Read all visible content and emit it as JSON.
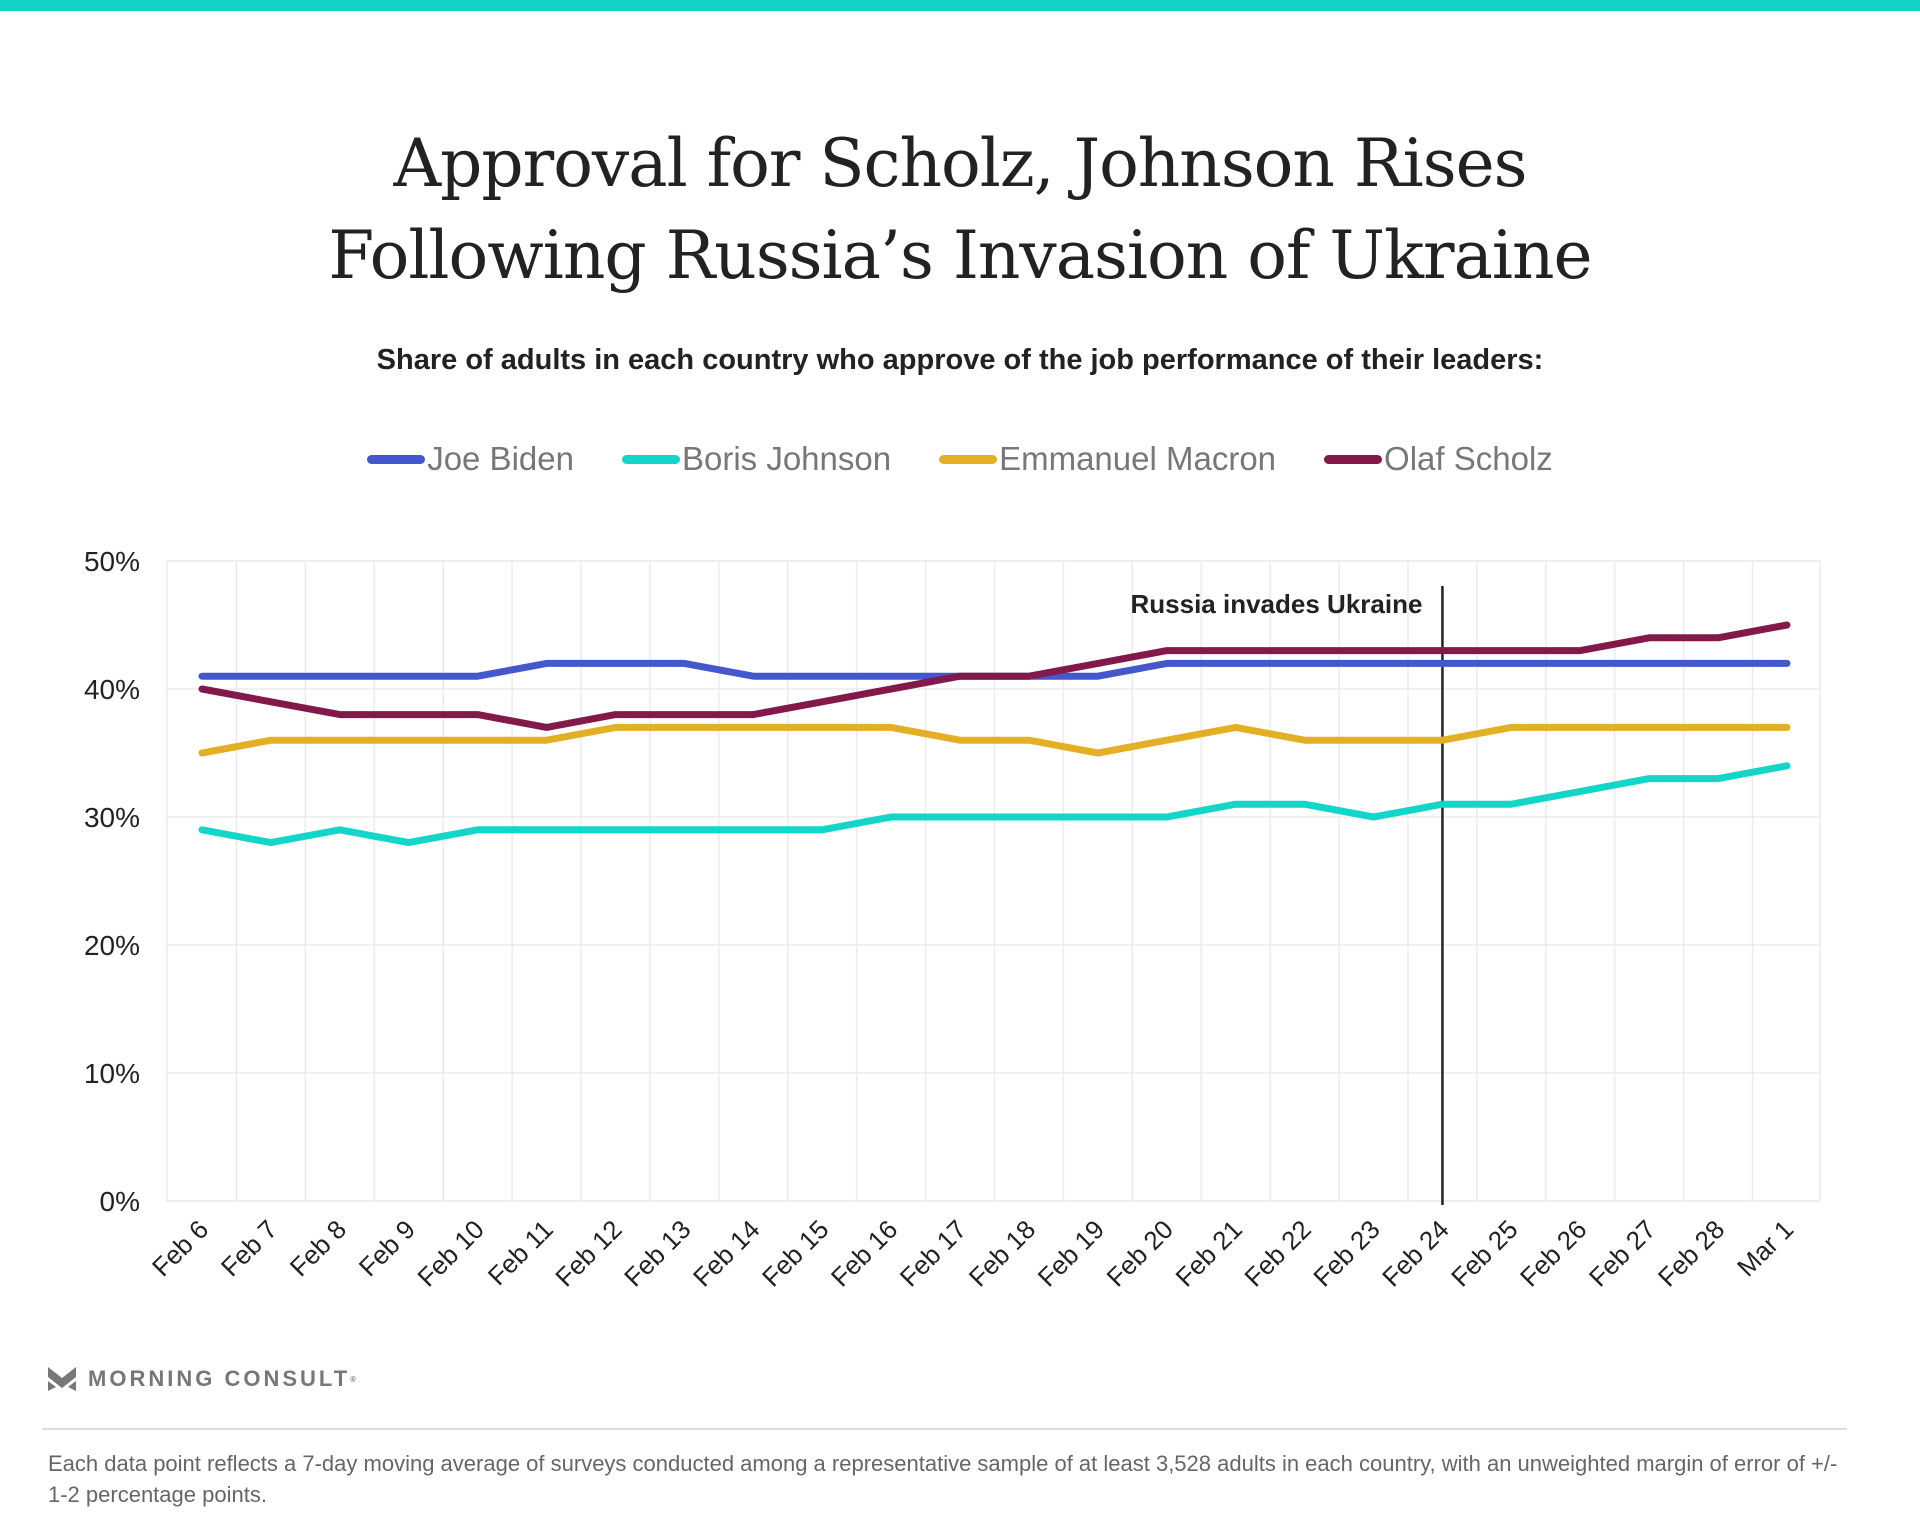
{
  "title_lines": [
    "Approval for Scholz, Johnson Rises",
    "Following Russia’s Invasion of Ukraine"
  ],
  "subtitle": "Share of adults in each country who approve of the job performance of their leaders:",
  "brand": {
    "name": "MORNING CONSULT",
    "mark": "®",
    "icon": "chevron-m-logo-icon"
  },
  "footnote": "Each data point reflects a 7-day moving average of surveys conducted among a representative sample of at least 3,528 adults in each country, with an unweighted margin of error of +/- 1-2 percentage points.",
  "colors": {
    "topbar": "#13d3c6",
    "grid": "#ebebeb",
    "annotation_line": "#222222"
  },
  "chart_data": {
    "type": "line",
    "title": "Approval for Scholz, Johnson Rises Following Russia’s Invasion of Ukraine",
    "subtitle": "Share of adults in each country who approve of the job performance of their leaders:",
    "xlabel": "",
    "ylabel": "",
    "ylim": [
      0,
      50
    ],
    "yticks": [
      0,
      10,
      20,
      30,
      40,
      50
    ],
    "ytick_labels": [
      "0%",
      "10%",
      "20%",
      "30%",
      "40%",
      "50%"
    ],
    "grid": true,
    "legend_position": "top-center",
    "x": [
      "Feb 6",
      "Feb 7",
      "Feb 8",
      "Feb 9",
      "Feb 10",
      "Feb 11",
      "Feb 12",
      "Feb 13",
      "Feb 14",
      "Feb 15",
      "Feb 16",
      "Feb 17",
      "Feb 18",
      "Feb 19",
      "Feb 20",
      "Feb 21",
      "Feb 22",
      "Feb 23",
      "Feb 24",
      "Feb 25",
      "Feb 26",
      "Feb 27",
      "Feb 28",
      "Mar 1"
    ],
    "series": [
      {
        "name": "Joe Biden",
        "color": "#4557cc",
        "values": [
          41,
          41,
          41,
          41,
          41,
          42,
          42,
          42,
          41,
          41,
          41,
          41,
          41,
          41,
          42,
          42,
          42,
          42,
          42,
          42,
          42,
          42,
          42,
          42
        ]
      },
      {
        "name": "Boris Johnson",
        "color": "#13d6c9",
        "values": [
          29,
          28,
          29,
          28,
          29,
          29,
          29,
          29,
          29,
          29,
          30,
          30,
          30,
          30,
          30,
          31,
          31,
          30,
          31,
          31,
          32,
          33,
          33,
          34
        ]
      },
      {
        "name": "Emmanuel Macron",
        "color": "#e3b025",
        "values": [
          35,
          36,
          36,
          36,
          36,
          36,
          37,
          37,
          37,
          37,
          37,
          36,
          36,
          35,
          36,
          37,
          36,
          36,
          36,
          37,
          37,
          37,
          37,
          37
        ]
      },
      {
        "name": "Olaf Scholz",
        "color": "#83184a",
        "values": [
          40,
          39,
          38,
          38,
          38,
          37,
          38,
          38,
          38,
          39,
          40,
          41,
          41,
          42,
          43,
          43,
          43,
          43,
          43,
          43,
          43,
          44,
          44,
          45
        ]
      }
    ],
    "annotations": [
      {
        "label": "Russia invades Ukraine",
        "x": "Feb 24",
        "type": "vertical-line"
      }
    ]
  }
}
